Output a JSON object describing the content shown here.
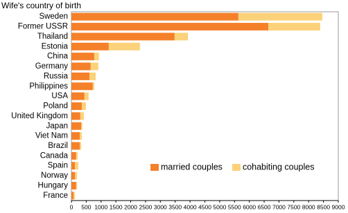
{
  "chart_data": {
    "type": "barh_stacked",
    "title": "Wife's country of birth",
    "categories": [
      "Sweden",
      "Former USSR",
      "Thailand",
      "Estonia",
      "China",
      "Germany",
      "Russia",
      "Philippines",
      "USA",
      "Poland",
      "United Kingdom",
      "Japan",
      "Viet Nam",
      "Brazil",
      "Canada",
      "Spain",
      "Norway",
      "Hungary",
      "France"
    ],
    "series": [
      {
        "name": "married couples",
        "color": "#f5802a",
        "values": [
          5630,
          6640,
          3480,
          1260,
          770,
          650,
          610,
          720,
          440,
          350,
          300,
          330,
          280,
          280,
          160,
          120,
          120,
          160,
          70
        ]
      },
      {
        "name": "cohabiting couples",
        "color": "#fbd27a",
        "values": [
          2830,
          1750,
          450,
          1050,
          160,
          260,
          210,
          50,
          140,
          140,
          120,
          40,
          70,
          50,
          50,
          110,
          70,
          30,
          50
        ]
      }
    ],
    "xlim": [
      0,
      9000
    ],
    "xticks": [
      0,
      500,
      1000,
      1500,
      2000,
      2500,
      3000,
      3500,
      4000,
      4500,
      5000,
      5500,
      6000,
      6500,
      7000,
      7500,
      8000,
      8500,
      9000
    ],
    "legend": "lower right"
  }
}
